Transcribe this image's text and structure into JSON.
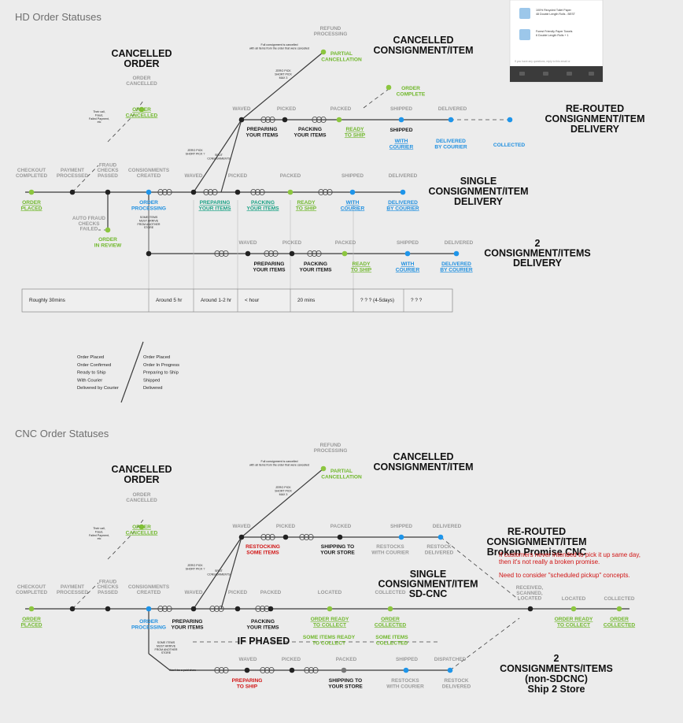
{
  "hd": {
    "section_title": "HD Order Statuses",
    "cancelled_order": [
      "CANCELLED",
      "ORDER"
    ],
    "cancelled_consignment": [
      "CANCELLED",
      "CONSIGNMENT/ITEM"
    ],
    "rerouted": [
      "RE-ROUTED",
      "CONSIGNMENT/ITEM",
      "DELIVERY"
    ],
    "single": [
      "SINGLE",
      "CONSIGNMENT/ITEM",
      "DELIVERY"
    ],
    "two": [
      "2",
      "CONSIGNMENT/ITEMS",
      "DELIVERY"
    ],
    "refund_processing": [
      "REFUND",
      "PROCESSING"
    ],
    "partial_cancellation": [
      "PARTIAL",
      "CANCELLATION"
    ],
    "full_consignment_note": [
      "Full consignment is cancelled",
      "with all items from the order that were cancelled"
    ],
    "zero_pick_note": [
      "ZERO PICK",
      "SHORT PICK",
      "MAX 3"
    ],
    "order_cancelled_grey": [
      "ORDER",
      "CANCELLED"
    ],
    "order_cancelled_green": [
      "ORDER",
      "CANCELLED"
    ],
    "order_complete": [
      "ORDER",
      "COMPLETE"
    ],
    "cancel_reasons": [
      "Their call,",
      "Fraud,",
      "Failed Payment,",
      "etc"
    ],
    "zero_pick_short": [
      "ZERO PICK",
      "SHORT PICK ?"
    ],
    "split_consignments": [
      "SPLIT",
      "CONSIGNMENTS"
    ],
    "top_steps": [
      "WAVED",
      "PICKED",
      "PACKED",
      "SHIPPED",
      "DELIVERED"
    ],
    "preparing_items": [
      "PREPARING",
      "YOUR ITEMS"
    ],
    "packing_items": [
      "PACKING",
      "YOUR ITEMS"
    ],
    "ready_to_ship": [
      "READY",
      "TO SHIP"
    ],
    "shipped_label": "SHIPPED",
    "with_courier": [
      "WITH",
      "COURIER"
    ],
    "delivered_by_courier": [
      "DELIVERED",
      "BY COURIER"
    ],
    "collected": "COLLECTED",
    "main_steps": [
      [
        "CHECKOUT",
        "COMPLETED"
      ],
      [
        "PAYMENT",
        "PROCESSED"
      ],
      [
        "FRAUD",
        "CHECKS",
        "PASSED"
      ],
      [
        "CONSIGNMENTS",
        "CREATED"
      ],
      [
        "WAVED"
      ],
      [
        "PICKED"
      ],
      [
        "PACKED"
      ],
      [
        "SHIPPED"
      ],
      [
        "DELIVERED"
      ]
    ],
    "order_placed": [
      "ORDER",
      "PLACED"
    ],
    "order_processing": [
      "ORDER",
      "PROCESSING"
    ],
    "main_preparing": [
      "PREPARING",
      "YOUR ITEMS"
    ],
    "main_packing": [
      "PACKING",
      "YOUR ITEMS"
    ],
    "main_ready": [
      "READY",
      "TO SHIP"
    ],
    "main_with_courier": [
      "WITH",
      "COURIER"
    ],
    "main_delivered": [
      "DELIVERED",
      "BY COURIER"
    ],
    "items_note": [
      "SOME ITEMS",
      "MUST ARRIVE",
      "FROM ANOTHER",
      "STORE"
    ],
    "auto_fraud": [
      "AUTO FRAUD",
      "CHECKS",
      "FAILED"
    ],
    "order_in_review": [
      "ORDER",
      "IN REVIEW"
    ],
    "timeline": [
      "Roughly 30mins",
      "Around 5 hr",
      "Around 1-2 hr",
      "< hour",
      "20 mins",
      "? ? ? (4-5days)",
      "? ? ?"
    ],
    "list_left": [
      "Order Placed",
      "Order Confirmed",
      "Ready to Ship",
      "With Courier",
      "Delivered by Courier"
    ],
    "list_right": [
      "Order Placed",
      "Order In Progress",
      "Preparing to Ship",
      "Shipped",
      "Delivered"
    ]
  },
  "cnc": {
    "section_title": "CNC Order Statuses",
    "cancelled_order": [
      "CANCELLED",
      "ORDER"
    ],
    "cancelled_consignment": [
      "CANCELLED",
      "CONSIGNMENT/ITEM"
    ],
    "rerouted": [
      "RE-ROUTED",
      "CONSIGNMENT/ITEM",
      "Broken Promise CNC"
    ],
    "single": [
      "SINGLE",
      "CONSIGNMENT/ITEM",
      "SD-CNC"
    ],
    "two": [
      "2",
      "CONSIGNMENTS/ITEMS",
      "(non-SDCNC)",
      "Ship 2 Store"
    ],
    "refund_processing": [
      "REFUND",
      "PROCESSING"
    ],
    "partial_cancellation": [
      "PARTIAL",
      "CANCELLATION"
    ],
    "order_cancelled_grey": [
      "ORDER",
      "CANCELLED"
    ],
    "order_cancelled_green": [
      "ORDER",
      "CANCELLED"
    ],
    "top_steps": [
      "WAVED",
      "PICKED",
      "PACKED",
      "SHIPPED",
      "DELIVERED"
    ],
    "restocking": [
      "RESTOCKING",
      "SOME ITEMS"
    ],
    "shipping_to_store": [
      "SHIPPING TO",
      "YOUR STORE"
    ],
    "restocks_courier": [
      "RESTOCKS",
      "WITH COURIER"
    ],
    "restock_delivered": [
      "RESTOCK",
      "DELIVERED"
    ],
    "notes": [
      "If customers never intended to pick it up same day,",
      "then it's not really a broken promise.",
      "Need to consider \"scheduled pickup\" concepts."
    ],
    "main_steps": [
      [
        "CHECKOUT",
        "COMPLETED"
      ],
      [
        "PAYMENT",
        "PROCESSED"
      ],
      [
        "FRAUD",
        "CHECKS",
        "PASSED"
      ],
      [
        "CONSIGNMENTS",
        "CREATED"
      ],
      [
        "WAVED"
      ],
      [
        "PICKED"
      ],
      [
        "PACKED"
      ],
      [
        "LOCATED"
      ],
      [
        "COLLECTED"
      ]
    ],
    "order_placed": [
      "ORDER",
      "PLACED"
    ],
    "order_processing": [
      "ORDER",
      "PROCESSING"
    ],
    "main_preparing": [
      "PREPARING",
      "YOUR ITEMS"
    ],
    "main_packing": [
      "PACKING",
      "YOUR ITEMS"
    ],
    "order_ready": [
      "ORDER READY",
      "TO COLLECT"
    ],
    "order_collected": [
      "ORDER",
      "COLLECTED"
    ],
    "received": [
      "RECEIVED,",
      "SCANNED,",
      "LOCATED"
    ],
    "right_located": "LOCATED",
    "right_collected": "COLLECTED",
    "right_ready": [
      "ORDER READY",
      "TO COLLECT"
    ],
    "right_order_collected": [
      "ORDER",
      "COLLECTED"
    ],
    "if_phased": "IF PHASED",
    "some_ready": [
      "SOME ITEMS READY",
      "TO COLLECT"
    ],
    "some_collected": [
      "SOME ITEMS",
      "COLLECTED"
    ],
    "bottom_steps": [
      "WAVED",
      "PICKED",
      "PACKED",
      "SHIPPED",
      "DISPATCHED"
    ],
    "preparing_ship": [
      "PREPARING",
      "TO SHIP"
    ],
    "bottom_shipping": [
      "SHIPPING TO",
      "YOUR STORE"
    ],
    "bottom_restocks": [
      "RESTOCKS",
      "WITH COURIER"
    ],
    "bottom_restock_delivered": [
      "RESTOCK",
      "DELIVERED"
    ],
    "paid_note": "Won't be a paid show"
  },
  "preview": {
    "items": [
      "100% Recycled Toilet Paper - 48 Double Length Rolls - BEST",
      "Forest Friendly Paper Towels - 6 Double Length Rolls + 1"
    ],
    "footer": "If you have any questions, reply to this email or"
  },
  "colors": {
    "green": "#8cc63f",
    "blue": "#1e95ea",
    "black": "#222222",
    "red": "#d11414",
    "teal": "#17a083"
  }
}
